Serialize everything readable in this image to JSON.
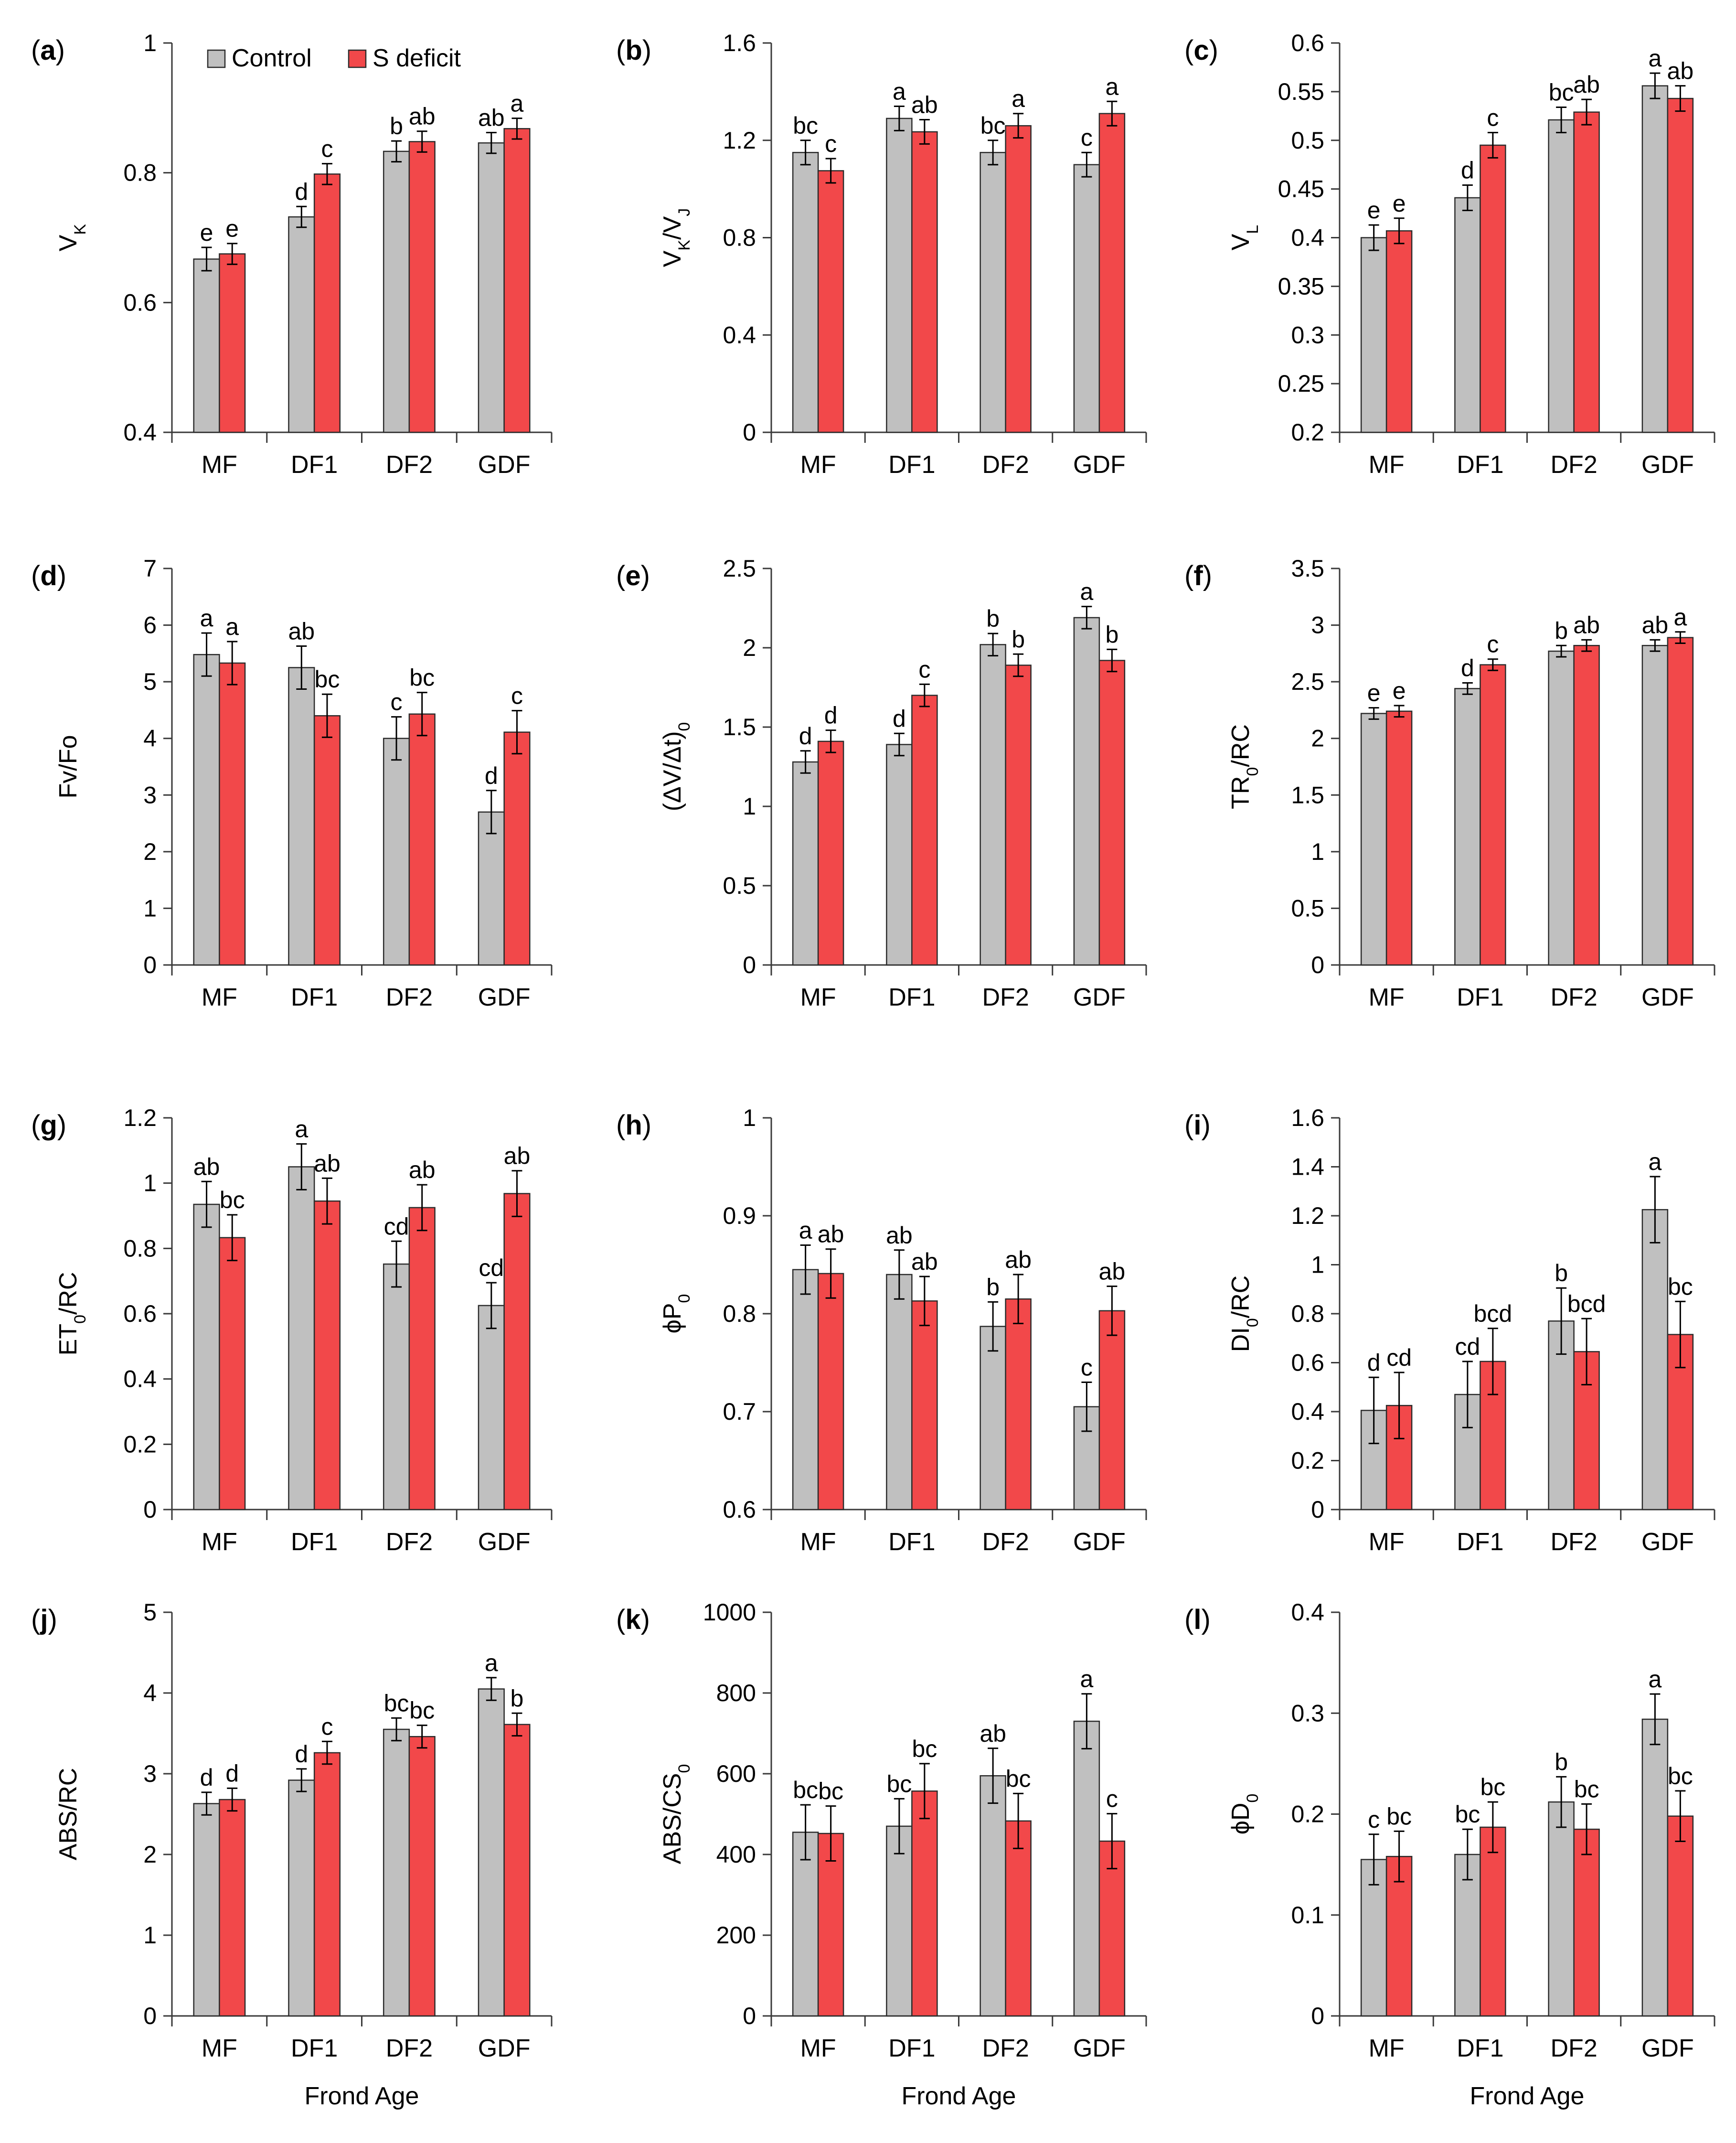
{
  "legend": {
    "items": [
      "Control",
      "S deficit"
    ]
  },
  "colors": {
    "control": "#c0c0c0",
    "s_deficit": "#f2484a",
    "outline": "#2b2b2b",
    "axis": "#3a3a3a"
  },
  "series_names": [
    "Control",
    "S deficit"
  ],
  "chart_data": [
    {
      "type": "bar",
      "letter": "a",
      "categories": [
        "MF",
        "DF1",
        "DF2",
        "GDF"
      ],
      "ylabel": [
        [
          "V"
        ],
        [
          "K",
          "sub"
        ]
      ],
      "ylim": [
        0.4,
        1
      ],
      "ticks": [
        0.4,
        0.6,
        0.8,
        1
      ],
      "xlabel": "",
      "series": [
        {
          "name": "Control",
          "values": [
            0.667,
            0.732,
            0.833,
            0.846
          ],
          "errors": [
            0.018,
            0.016,
            0.016,
            0.016
          ],
          "labels": [
            "e",
            "d",
            "b",
            "ab"
          ]
        },
        {
          "name": "S deficit",
          "values": [
            0.675,
            0.798,
            0.848,
            0.868
          ],
          "errors": [
            0.016,
            0.016,
            0.016,
            0.016
          ],
          "labels": [
            "e",
            "c",
            "ab",
            "a"
          ]
        }
      ]
    },
    {
      "type": "bar",
      "letter": "b",
      "categories": [
        "MF",
        "DF1",
        "DF2",
        "GDF"
      ],
      "ylabel": [
        [
          "V"
        ],
        [
          "K",
          "sub"
        ],
        [
          "/V"
        ],
        [
          "J",
          "sub"
        ]
      ],
      "ylim": [
        0,
        1.6
      ],
      "ticks": [
        0,
        0.4,
        0.8,
        1.2,
        1.6
      ],
      "xlabel": "",
      "series": [
        {
          "name": "Control",
          "values": [
            1.15,
            1.29,
            1.15,
            1.1
          ],
          "errors": [
            0.05,
            0.05,
            0.05,
            0.05
          ],
          "labels": [
            "bc",
            "a",
            "bc",
            "c"
          ]
        },
        {
          "name": "S deficit",
          "values": [
            1.075,
            1.235,
            1.26,
            1.31
          ],
          "errors": [
            0.05,
            0.05,
            0.05,
            0.05
          ],
          "labels": [
            "c",
            "ab",
            "a",
            "a"
          ]
        }
      ]
    },
    {
      "type": "bar",
      "letter": "c",
      "categories": [
        "MF",
        "DF1",
        "DF2",
        "GDF"
      ],
      "ylabel": [
        [
          "V"
        ],
        [
          "L",
          "sub"
        ]
      ],
      "ylim": [
        0.2,
        0.6
      ],
      "ticks": [
        0.2,
        0.25,
        0.3,
        0.35,
        0.4,
        0.45,
        0.5,
        0.55,
        0.6
      ],
      "xlabel": "",
      "series": [
        {
          "name": "Control",
          "values": [
            0.4,
            0.441,
            0.521,
            0.556
          ],
          "errors": [
            0.013,
            0.013,
            0.013,
            0.013
          ],
          "labels": [
            "e",
            "d",
            "bc",
            "a"
          ]
        },
        {
          "name": "S deficit",
          "values": [
            0.407,
            0.495,
            0.529,
            0.543
          ],
          "errors": [
            0.013,
            0.013,
            0.013,
            0.013
          ],
          "labels": [
            "e",
            "c",
            "ab",
            "ab"
          ]
        }
      ]
    },
    {
      "type": "bar",
      "letter": "d",
      "categories": [
        "MF",
        "DF1",
        "DF2",
        "GDF"
      ],
      "ylabel": [
        [
          "Fv/Fo"
        ]
      ],
      "ylim": [
        0,
        7
      ],
      "ticks": [
        0,
        1,
        2,
        3,
        4,
        5,
        6,
        7
      ],
      "xlabel": "",
      "series": [
        {
          "name": "Control",
          "values": [
            5.48,
            5.25,
            4.0,
            2.7
          ],
          "errors": [
            0.38,
            0.38,
            0.38,
            0.38
          ],
          "labels": [
            "a",
            "ab",
            "c",
            "d"
          ]
        },
        {
          "name": "S deficit",
          "values": [
            5.33,
            4.4,
            4.43,
            4.11
          ],
          "errors": [
            0.38,
            0.38,
            0.38,
            0.38
          ],
          "labels": [
            "a",
            "bc",
            "bc",
            "c"
          ]
        }
      ]
    },
    {
      "type": "bar",
      "letter": "e",
      "categories": [
        "MF",
        "DF1",
        "DF2",
        "GDF"
      ],
      "ylabel": [
        [
          "(ΔV/Δt)"
        ],
        [
          "0",
          "sub"
        ]
      ],
      "ylim": [
        0,
        2.5
      ],
      "ticks": [
        0,
        0.5,
        1,
        1.5,
        2,
        2.5
      ],
      "xlabel": "",
      "series": [
        {
          "name": "Control",
          "values": [
            1.28,
            1.39,
            2.02,
            2.19
          ],
          "errors": [
            0.07,
            0.07,
            0.07,
            0.07
          ],
          "labels": [
            "d",
            "d",
            "b",
            "a"
          ]
        },
        {
          "name": "S deficit",
          "values": [
            1.41,
            1.7,
            1.89,
            1.92
          ],
          "errors": [
            0.07,
            0.07,
            0.07,
            0.07
          ],
          "labels": [
            "d",
            "c",
            "b",
            "b"
          ]
        }
      ]
    },
    {
      "type": "bar",
      "letter": "f",
      "categories": [
        "MF",
        "DF1",
        "DF2",
        "GDF"
      ],
      "ylabel": [
        [
          "TR"
        ],
        [
          "0",
          "sub"
        ],
        [
          "/RC"
        ]
      ],
      "ylim": [
        0,
        3.5
      ],
      "ticks": [
        0,
        0.5,
        1,
        1.5,
        2,
        2.5,
        3,
        3.5
      ],
      "xlabel": "",
      "series": [
        {
          "name": "Control",
          "values": [
            2.22,
            2.44,
            2.77,
            2.82
          ],
          "errors": [
            0.05,
            0.05,
            0.05,
            0.05
          ],
          "labels": [
            "e",
            "d",
            "b",
            "ab"
          ]
        },
        {
          "name": "S deficit",
          "values": [
            2.24,
            2.65,
            2.82,
            2.89
          ],
          "errors": [
            0.05,
            0.05,
            0.05,
            0.05
          ],
          "labels": [
            "e",
            "c",
            "ab",
            "a"
          ]
        }
      ]
    },
    {
      "type": "bar",
      "letter": "g",
      "categories": [
        "MF",
        "DF1",
        "DF2",
        "GDF"
      ],
      "ylabel": [
        [
          "ET"
        ],
        [
          "0",
          "sub"
        ],
        [
          "/RC"
        ]
      ],
      "ylim": [
        0,
        1.2
      ],
      "ticks": [
        0,
        0.2,
        0.4,
        0.6,
        0.8,
        1,
        1.2
      ],
      "xlabel": "",
      "series": [
        {
          "name": "Control",
          "values": [
            0.935,
            1.05,
            0.752,
            0.625
          ],
          "errors": [
            0.07,
            0.07,
            0.07,
            0.07
          ],
          "labels": [
            "ab",
            "a",
            "cd",
            "cd"
          ]
        },
        {
          "name": "S deficit",
          "values": [
            0.833,
            0.945,
            0.925,
            0.968
          ],
          "errors": [
            0.07,
            0.07,
            0.07,
            0.07
          ],
          "labels": [
            "bc",
            "ab",
            "ab",
            "ab"
          ]
        }
      ]
    },
    {
      "type": "bar",
      "letter": "h",
      "categories": [
        "MF",
        "DF1",
        "DF2",
        "GDF"
      ],
      "ylabel": [
        [
          "ϕP"
        ],
        [
          "0",
          "sub"
        ]
      ],
      "ylim": [
        0.6,
        1
      ],
      "ticks": [
        0.6,
        0.7,
        0.8,
        0.9,
        1
      ],
      "xlabel": "",
      "series": [
        {
          "name": "Control",
          "values": [
            0.845,
            0.84,
            0.787,
            0.705
          ],
          "errors": [
            0.025,
            0.025,
            0.025,
            0.025
          ],
          "labels": [
            "a",
            "ab",
            "b",
            "c"
          ]
        },
        {
          "name": "S deficit",
          "values": [
            0.841,
            0.813,
            0.815,
            0.803
          ],
          "errors": [
            0.025,
            0.025,
            0.025,
            0.025
          ],
          "labels": [
            "ab",
            "ab",
            "ab",
            "ab"
          ]
        }
      ]
    },
    {
      "type": "bar",
      "letter": "i",
      "categories": [
        "MF",
        "DF1",
        "DF2",
        "GDF"
      ],
      "ylabel": [
        [
          "DI"
        ],
        [
          "0",
          "sub"
        ],
        [
          "/RC"
        ]
      ],
      "ylim": [
        0,
        1.6
      ],
      "ticks": [
        0,
        0.2,
        0.4,
        0.6,
        0.8,
        1,
        1.2,
        1.4,
        1.6
      ],
      "xlabel": "",
      "series": [
        {
          "name": "Control",
          "values": [
            0.405,
            0.47,
            0.77,
            1.225
          ],
          "errors": [
            0.135,
            0.135,
            0.135,
            0.135
          ],
          "labels": [
            "d",
            "cd",
            "b",
            "a"
          ]
        },
        {
          "name": "S deficit",
          "values": [
            0.425,
            0.605,
            0.645,
            0.715
          ],
          "errors": [
            0.135,
            0.135,
            0.135,
            0.135
          ],
          "labels": [
            "cd",
            "bcd",
            "bcd",
            "bc"
          ]
        }
      ]
    },
    {
      "type": "bar",
      "letter": "j",
      "categories": [
        "MF",
        "DF1",
        "DF2",
        "GDF"
      ],
      "ylabel": [
        [
          "ABS/RC"
        ]
      ],
      "ylim": [
        0,
        5
      ],
      "ticks": [
        0,
        1,
        2,
        3,
        4,
        5
      ],
      "xlabel": "Frond Age",
      "series": [
        {
          "name": "Control",
          "values": [
            2.63,
            2.92,
            3.55,
            4.05
          ],
          "errors": [
            0.14,
            0.14,
            0.14,
            0.14
          ],
          "labels": [
            "d",
            "d",
            "bc",
            "a"
          ]
        },
        {
          "name": "S deficit",
          "values": [
            2.68,
            3.26,
            3.46,
            3.61
          ],
          "errors": [
            0.14,
            0.14,
            0.14,
            0.14
          ],
          "labels": [
            "d",
            "c",
            "bc",
            "b"
          ]
        }
      ]
    },
    {
      "type": "bar",
      "letter": "k",
      "categories": [
        "MF",
        "DF1",
        "DF2",
        "GDF"
      ],
      "ylabel": [
        [
          "ABS/CS"
        ],
        [
          "0",
          "sub"
        ]
      ],
      "ylim": [
        0,
        1000
      ],
      "ticks": [
        0,
        200,
        400,
        600,
        800,
        1000
      ],
      "xlabel": "Frond Age",
      "series": [
        {
          "name": "Control",
          "values": [
            455,
            470,
            595,
            730
          ],
          "errors": [
            68,
            68,
            68,
            68
          ],
          "labels": [
            "bc",
            "bc",
            "ab",
            "a"
          ]
        },
        {
          "name": "S deficit",
          "values": [
            452,
            557,
            483,
            433
          ],
          "errors": [
            68,
            68,
            68,
            68
          ],
          "labels": [
            "bc",
            "bc",
            "bc",
            "c"
          ]
        }
      ]
    },
    {
      "type": "bar",
      "letter": "l",
      "categories": [
        "MF",
        "DF1",
        "DF2",
        "GDF"
      ],
      "ylabel": [
        [
          "ϕD"
        ],
        [
          "0",
          "sub"
        ]
      ],
      "ylim": [
        0,
        0.4
      ],
      "ticks": [
        0,
        0.1,
        0.2,
        0.3,
        0.4
      ],
      "xlabel": "Frond Age",
      "series": [
        {
          "name": "Control",
          "values": [
            0.155,
            0.16,
            0.212,
            0.294
          ],
          "errors": [
            0.025,
            0.025,
            0.025,
            0.025
          ],
          "labels": [
            "c",
            "bc",
            "b",
            "a"
          ]
        },
        {
          "name": "S deficit",
          "values": [
            0.158,
            0.187,
            0.185,
            0.198
          ],
          "errors": [
            0.025,
            0.025,
            0.025,
            0.025
          ],
          "labels": [
            "bc",
            "bc",
            "bc",
            "bc"
          ]
        }
      ]
    }
  ]
}
